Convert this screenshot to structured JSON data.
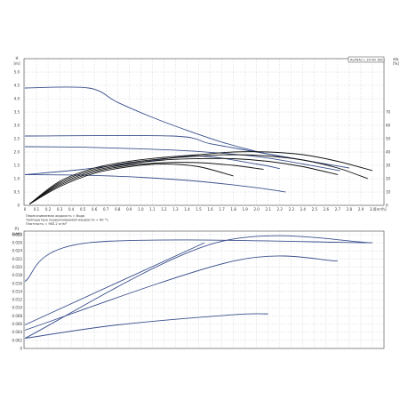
{
  "chart_data": [
    {
      "type": "line",
      "title": "ALPHA1 L 20-40 180",
      "xlabel": "[m³/h]",
      "ylabel": "[m]",
      "y2label": "eta [%]",
      "xlim": [
        0,
        3.0
      ],
      "ylim": [
        0,
        5.0
      ],
      "y2lim": [
        0,
        100
      ],
      "x_ticks": [
        "0",
        "0.1",
        "0.2",
        "0.3",
        "0.4",
        "0.5",
        "0.6",
        "0.7",
        "0.8",
        "0.9",
        "1.0",
        "1.1",
        "1.2",
        "1.3",
        "1.4",
        "1.5",
        "1.6",
        "1.7",
        "1.8",
        "1.9",
        "2.0",
        "2.1",
        "2.2",
        "2.3",
        "2.4",
        "2.5",
        "2.6",
        "2.7",
        "2.8",
        "2.9",
        "3.0"
      ],
      "y_ticks": [
        "0",
        "0.5",
        "1.0",
        "1.5",
        "2.0",
        "2.5",
        "3.0",
        "3.5",
        "4.0",
        "4.5",
        "5.0"
      ],
      "y2_ticks": [
        "0",
        "10",
        "20",
        "30",
        "40",
        "50",
        "60",
        "70"
      ],
      "grid": true,
      "notes": [
        "Перекачиваемая жидкость = Вода",
        "Температура перекачиваемой жидкости = 60 °C",
        "Плотность = 983.2 кг/м³"
      ],
      "series": [
        {
          "values": [
            [
              0,
              4.4
            ],
            [
              0.55,
              4.4
            ],
            [
              0.8,
              3.86
            ],
            [
              1.1,
              3.3
            ],
            [
              1.4,
              2.81
            ],
            [
              1.7,
              2.37
            ],
            [
              2.0,
              2.02
            ],
            [
              2.2,
              1.84
            ]
          ]
        },
        {
          "values": [
            [
              0,
              2.6
            ],
            [
              1.27,
              2.6
            ],
            [
              1.6,
              2.31
            ],
            [
              2.0,
              2.0
            ],
            [
              2.4,
              1.7
            ],
            [
              2.8,
              1.4
            ]
          ]
        },
        {
          "values": [
            [
              0,
              2.2
            ],
            [
              0.5,
              2.18
            ],
            [
              1.0,
              2.12
            ],
            [
              1.5,
              2.02
            ],
            [
              2.0,
              1.83
            ],
            [
              2.4,
              1.55
            ],
            [
              2.72,
              1.3
            ]
          ]
        },
        {
          "values": [
            [
              0,
              1.15
            ],
            [
              0.5,
              1.13
            ],
            [
              1.0,
              1.05
            ],
            [
              1.5,
              0.9
            ],
            [
              2.0,
              0.66
            ],
            [
              2.25,
              0.5
            ]
          ]
        },
        {
          "values": [
            [
              0,
              1.15
            ],
            [
              0.5,
              1.35
            ],
            [
              1.0,
              1.62
            ],
            [
              1.5,
              1.85
            ],
            [
              2.0,
              1.55
            ],
            [
              2.2,
              1.38
            ]
          ]
        }
      ],
      "efficiency_series": [
        {
          "values": [
            [
              0.04,
              1
            ],
            [
              0.3,
              18
            ],
            [
              0.6,
              28
            ],
            [
              0.9,
              33
            ],
            [
              1.2,
              36
            ],
            [
              1.5,
              38
            ],
            [
              1.8,
              40
            ],
            [
              2.1,
              40
            ],
            [
              2.4,
              38
            ],
            [
              2.7,
              33
            ],
            [
              3.0,
              26
            ]
          ]
        },
        {
          "values": [
            [
              0.04,
              1
            ],
            [
              0.3,
              17
            ],
            [
              0.6,
              27
            ],
            [
              0.9,
              32
            ],
            [
              1.2,
              35
            ],
            [
              1.5,
              37
            ],
            [
              1.8,
              38
            ],
            [
              2.1,
              37
            ],
            [
              2.4,
              34
            ],
            [
              2.7,
              28
            ],
            [
              2.96,
              20
            ]
          ]
        },
        {
          "values": [
            [
              0.04,
              1
            ],
            [
              0.3,
              16
            ],
            [
              0.6,
              26
            ],
            [
              0.9,
              31
            ],
            [
              1.2,
              34
            ],
            [
              1.5,
              35
            ],
            [
              1.8,
              35
            ],
            [
              2.1,
              33
            ],
            [
              2.4,
              29
            ],
            [
              2.7,
              23
            ]
          ]
        },
        {
          "values": [
            [
              0.04,
              1
            ],
            [
              0.3,
              15
            ],
            [
              0.6,
              25
            ],
            [
              0.9,
              30
            ],
            [
              1.2,
              32
            ],
            [
              1.5,
              32
            ],
            [
              1.8,
              30
            ],
            [
              2.06,
              27
            ]
          ]
        },
        {
          "values": [
            [
              0.04,
              1
            ],
            [
              0.3,
              14
            ],
            [
              0.6,
              24
            ],
            [
              0.9,
              29
            ],
            [
              1.2,
              31
            ],
            [
              1.5,
              29
            ],
            [
              1.8,
              22
            ]
          ]
        }
      ]
    },
    {
      "type": "line",
      "ylabel": "P1\n[kW]",
      "xlim": [
        0,
        3.0
      ],
      "ylim": [
        0,
        0.028
      ],
      "y_ticks": [
        "0",
        "0.002",
        "0.004",
        "0.006",
        "0.008",
        "0.010",
        "0.012",
        "0.014",
        "0.016",
        "0.018",
        "0.020",
        "0.022",
        "0.024",
        "0.026",
        "0.028"
      ],
      "grid": true,
      "series": [
        {
          "values": [
            [
              0,
              0.0165
            ],
            [
              0.55,
              0.026
            ],
            [
              3.0,
              0.026
            ]
          ]
        },
        {
          "values": [
            [
              0,
              0.0058
            ],
            [
              1.55,
              0.026
            ]
          ]
        },
        {
          "values": [
            [
              0,
              0.0025
            ],
            [
              1.65,
              0.026
            ],
            [
              3.0,
              0.026
            ]
          ]
        },
        {
          "values": [
            [
              0,
              0.0045
            ],
            [
              1.8,
              0.0215
            ],
            [
              2.7,
              0.0215
            ]
          ]
        },
        {
          "values": [
            [
              0,
              0.0025
            ],
            [
              0.8,
              0.0058
            ],
            [
              1.8,
              0.0083
            ],
            [
              2.1,
              0.0085
            ]
          ]
        }
      ]
    }
  ]
}
